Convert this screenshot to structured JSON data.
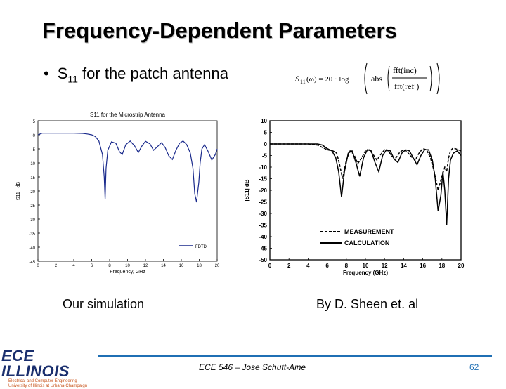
{
  "slide": {
    "title": "Frequency-Dependent Parameters",
    "bullet_prefix": "S",
    "bullet_sub": "11",
    "bullet_rest": " for the patch antenna",
    "formula": {
      "lhs": "S",
      "lhs_sub": "11",
      "lhs_arg": "(ω) = 20 · log",
      "abs": "abs",
      "num": "fft(inc)",
      "den": "fft(ref )"
    },
    "left_caption": "Our simulation",
    "right_caption": "By D. Sheen et. al",
    "footer": "ECE 546 – Jose Schutt-Aine",
    "page_number": "62",
    "logo_main": "ECE ILLINOIS",
    "logo_sub1": "Electrical and Computer Engineering",
    "logo_sub2": "University of Illinois at Urbana-Champaign"
  },
  "colors": {
    "accent": "#1f6fb4",
    "logo": "#1a2f6e",
    "fdtd": "#1a2a8c"
  },
  "chart_data": [
    {
      "type": "line",
      "title": "S11 for the Microstrip Antenna",
      "xlabel": "Frequency, GHz",
      "ylabel": "S11 | dB",
      "xlim": [
        0,
        20
      ],
      "ylim": [
        -45,
        5
      ],
      "xticks": [
        "0",
        "2",
        "4",
        "6",
        "8",
        "10",
        "12",
        "14",
        "16",
        "18",
        "20"
      ],
      "yticks": [
        "5",
        "0",
        "-5",
        "-10",
        "-15",
        "-20",
        "-25",
        "-30",
        "-35",
        "-40",
        "-45"
      ],
      "legend_position": "bottom-right",
      "series": [
        {
          "name": "FDTD",
          "x": [
            0,
            0.5,
            1,
            2,
            3,
            4,
            5,
            5.5,
            6,
            6.4,
            6.8,
            7.2,
            7.4,
            7.5,
            7.6,
            7.8,
            8.2,
            8.7,
            9.1,
            9.4,
            9.8,
            10.3,
            10.8,
            11.2,
            11.6,
            12.0,
            12.5,
            12.9,
            13.3,
            13.8,
            14.2,
            14.6,
            15.0,
            15.4,
            15.8,
            16.2,
            16.6,
            17.0,
            17.3,
            17.5,
            17.7,
            17.8,
            17.95,
            18.1,
            18.3,
            18.6,
            19.0,
            19.4,
            19.8,
            20
          ],
          "y": [
            0,
            0.6,
            0.6,
            0.6,
            0.6,
            0.6,
            0.5,
            0.3,
            0,
            -0.6,
            -2.2,
            -7,
            -15,
            -23,
            -12,
            -5.5,
            -2.5,
            -3,
            -6,
            -7,
            -3.5,
            -2.2,
            -4,
            -6.3,
            -4,
            -2.3,
            -3.2,
            -5.5,
            -4.3,
            -2.8,
            -4.5,
            -7.5,
            -8.8,
            -5.5,
            -3,
            -2.2,
            -3.5,
            -6.5,
            -12,
            -21,
            -24,
            -21,
            -17,
            -10,
            -5,
            -3.5,
            -6,
            -9,
            -7,
            -5
          ]
        }
      ]
    },
    {
      "type": "line",
      "xlabel": "Frequency (GHz)",
      "ylabel": "|S11| dB",
      "xlim": [
        0,
        20
      ],
      "ylim": [
        -50,
        10
      ],
      "xticks": [
        "0",
        "2",
        "4",
        "6",
        "8",
        "10",
        "12",
        "14",
        "16",
        "18",
        "20"
      ],
      "yticks": [
        "10",
        "5",
        "0",
        "-5",
        "-10",
        "-15",
        "-20",
        "-25",
        "-30",
        "-35",
        "-40",
        "-45",
        "-50"
      ],
      "legend_position": "bottom-right",
      "series": [
        {
          "name": "MEASUREMENT",
          "dashed": true,
          "x": [
            0,
            2,
            4,
            5,
            5.5,
            6,
            6.6,
            7.0,
            7.3,
            7.6,
            8.0,
            8.4,
            8.8,
            9.2,
            9.6,
            10.0,
            10.4,
            10.8,
            11.2,
            11.6,
            12.0,
            12.4,
            12.8,
            13.2,
            13.6,
            14.0,
            14.4,
            14.8,
            15.2,
            15.6,
            16.0,
            16.4,
            16.8,
            17.2,
            17.6,
            18.0,
            18.3,
            18.5,
            18.7,
            18.9,
            19.1,
            19.4,
            19.7,
            20
          ],
          "y": [
            0,
            0,
            0,
            -0.5,
            -1.5,
            -2.5,
            -3,
            -4,
            -9,
            -15,
            -7,
            -3,
            -4.5,
            -8.5,
            -6,
            -3,
            -2.5,
            -4.5,
            -7,
            -4.5,
            -2.5,
            -3,
            -5.5,
            -6,
            -3.5,
            -2.5,
            -3.5,
            -5.5,
            -7,
            -4,
            -2,
            -2.5,
            -6,
            -12,
            -20,
            -14,
            -10,
            -12,
            -6,
            -3,
            -2,
            -2,
            -2.5,
            -3
          ]
        },
        {
          "name": "CALCULATION",
          "dashed": false,
          "x": [
            0,
            2,
            4,
            5,
            5.5,
            6,
            6.5,
            6.9,
            7.2,
            7.5,
            7.8,
            8.2,
            8.6,
            9.0,
            9.4,
            9.8,
            10.2,
            10.6,
            11.0,
            11.4,
            11.8,
            12.2,
            12.6,
            13.0,
            13.4,
            13.8,
            14.2,
            14.6,
            15.0,
            15.4,
            15.8,
            16.2,
            16.6,
            17.0,
            17.3,
            17.6,
            17.9,
            18.1,
            18.3,
            18.5,
            18.7,
            18.9,
            19.2,
            19.6,
            20
          ],
          "y": [
            0,
            0,
            0,
            0,
            -0.5,
            -2,
            -3,
            -6,
            -12,
            -23,
            -12,
            -4,
            -3,
            -8,
            -14,
            -6,
            -2.5,
            -3,
            -8,
            -12,
            -5,
            -2.5,
            -3,
            -6.5,
            -8,
            -4,
            -2.5,
            -3,
            -6,
            -9,
            -5,
            -2.5,
            -2.5,
            -7,
            -15,
            -29,
            -22,
            -12,
            -20,
            -35,
            -15,
            -7,
            -4,
            -3,
            -5
          ]
        }
      ]
    }
  ]
}
